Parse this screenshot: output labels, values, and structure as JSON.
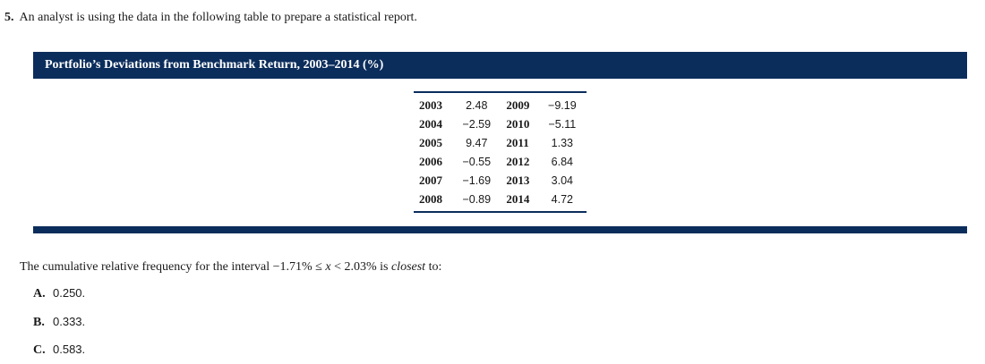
{
  "question": {
    "number": "5.",
    "text": "An analyst is using the data in the following table to prepare a statistical report."
  },
  "exhibit": {
    "title": "Portfolio’s Deviations from Benchmark Return, 2003–2014 (%)",
    "rows": [
      {
        "year_a": "2003",
        "value_a": "2.48",
        "year_b": "2009",
        "value_b": "−9.19"
      },
      {
        "year_a": "2004",
        "value_a": "−2.59",
        "year_b": "2010",
        "value_b": "−5.11"
      },
      {
        "year_a": "2005",
        "value_a": "9.47",
        "year_b": "2011",
        "value_b": "1.33"
      },
      {
        "year_a": "2006",
        "value_a": "−0.55",
        "year_b": "2012",
        "value_b": "6.84"
      },
      {
        "year_a": "2007",
        "value_a": "−1.69",
        "year_b": "2013",
        "value_b": "3.04"
      },
      {
        "year_a": "2008",
        "value_a": "−0.89",
        "year_b": "2014",
        "value_b": "4.72"
      }
    ]
  },
  "stem": {
    "prefix": "The cumulative relative frequency for the interval −1.71% ≤ ",
    "var": "x",
    "middle": " < 2.03% is ",
    "emph": "closest",
    "suffix": " to:"
  },
  "options": [
    {
      "letter": "A.",
      "value": "0.250."
    },
    {
      "letter": "B.",
      "value": "0.333."
    },
    {
      "letter": "C.",
      "value": "0.583."
    }
  ],
  "colors": {
    "exhibit_navy": "#0b2d5c"
  }
}
